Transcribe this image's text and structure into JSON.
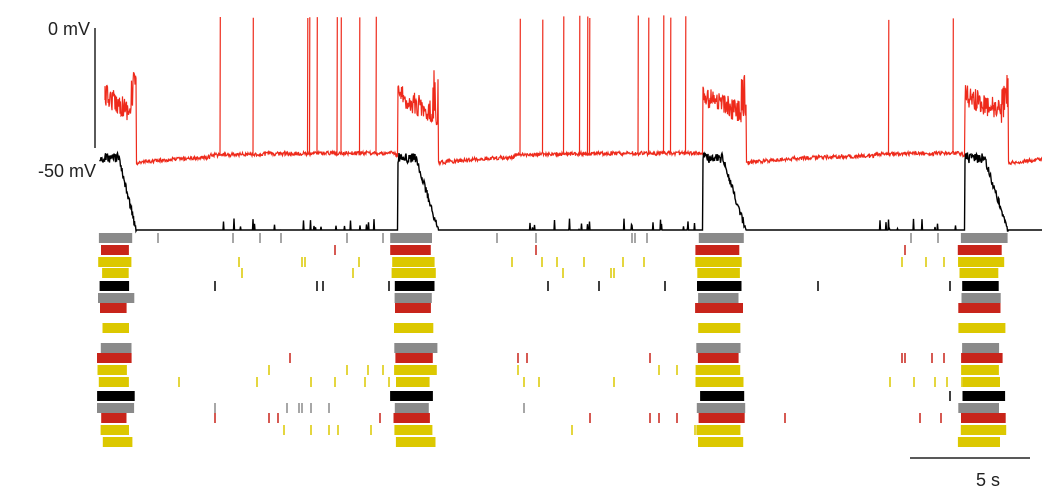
{
  "scale_bars": {
    "voltage_top": "0 mV",
    "voltage_bottom": "-50 mV",
    "time": "5 s"
  }
}
